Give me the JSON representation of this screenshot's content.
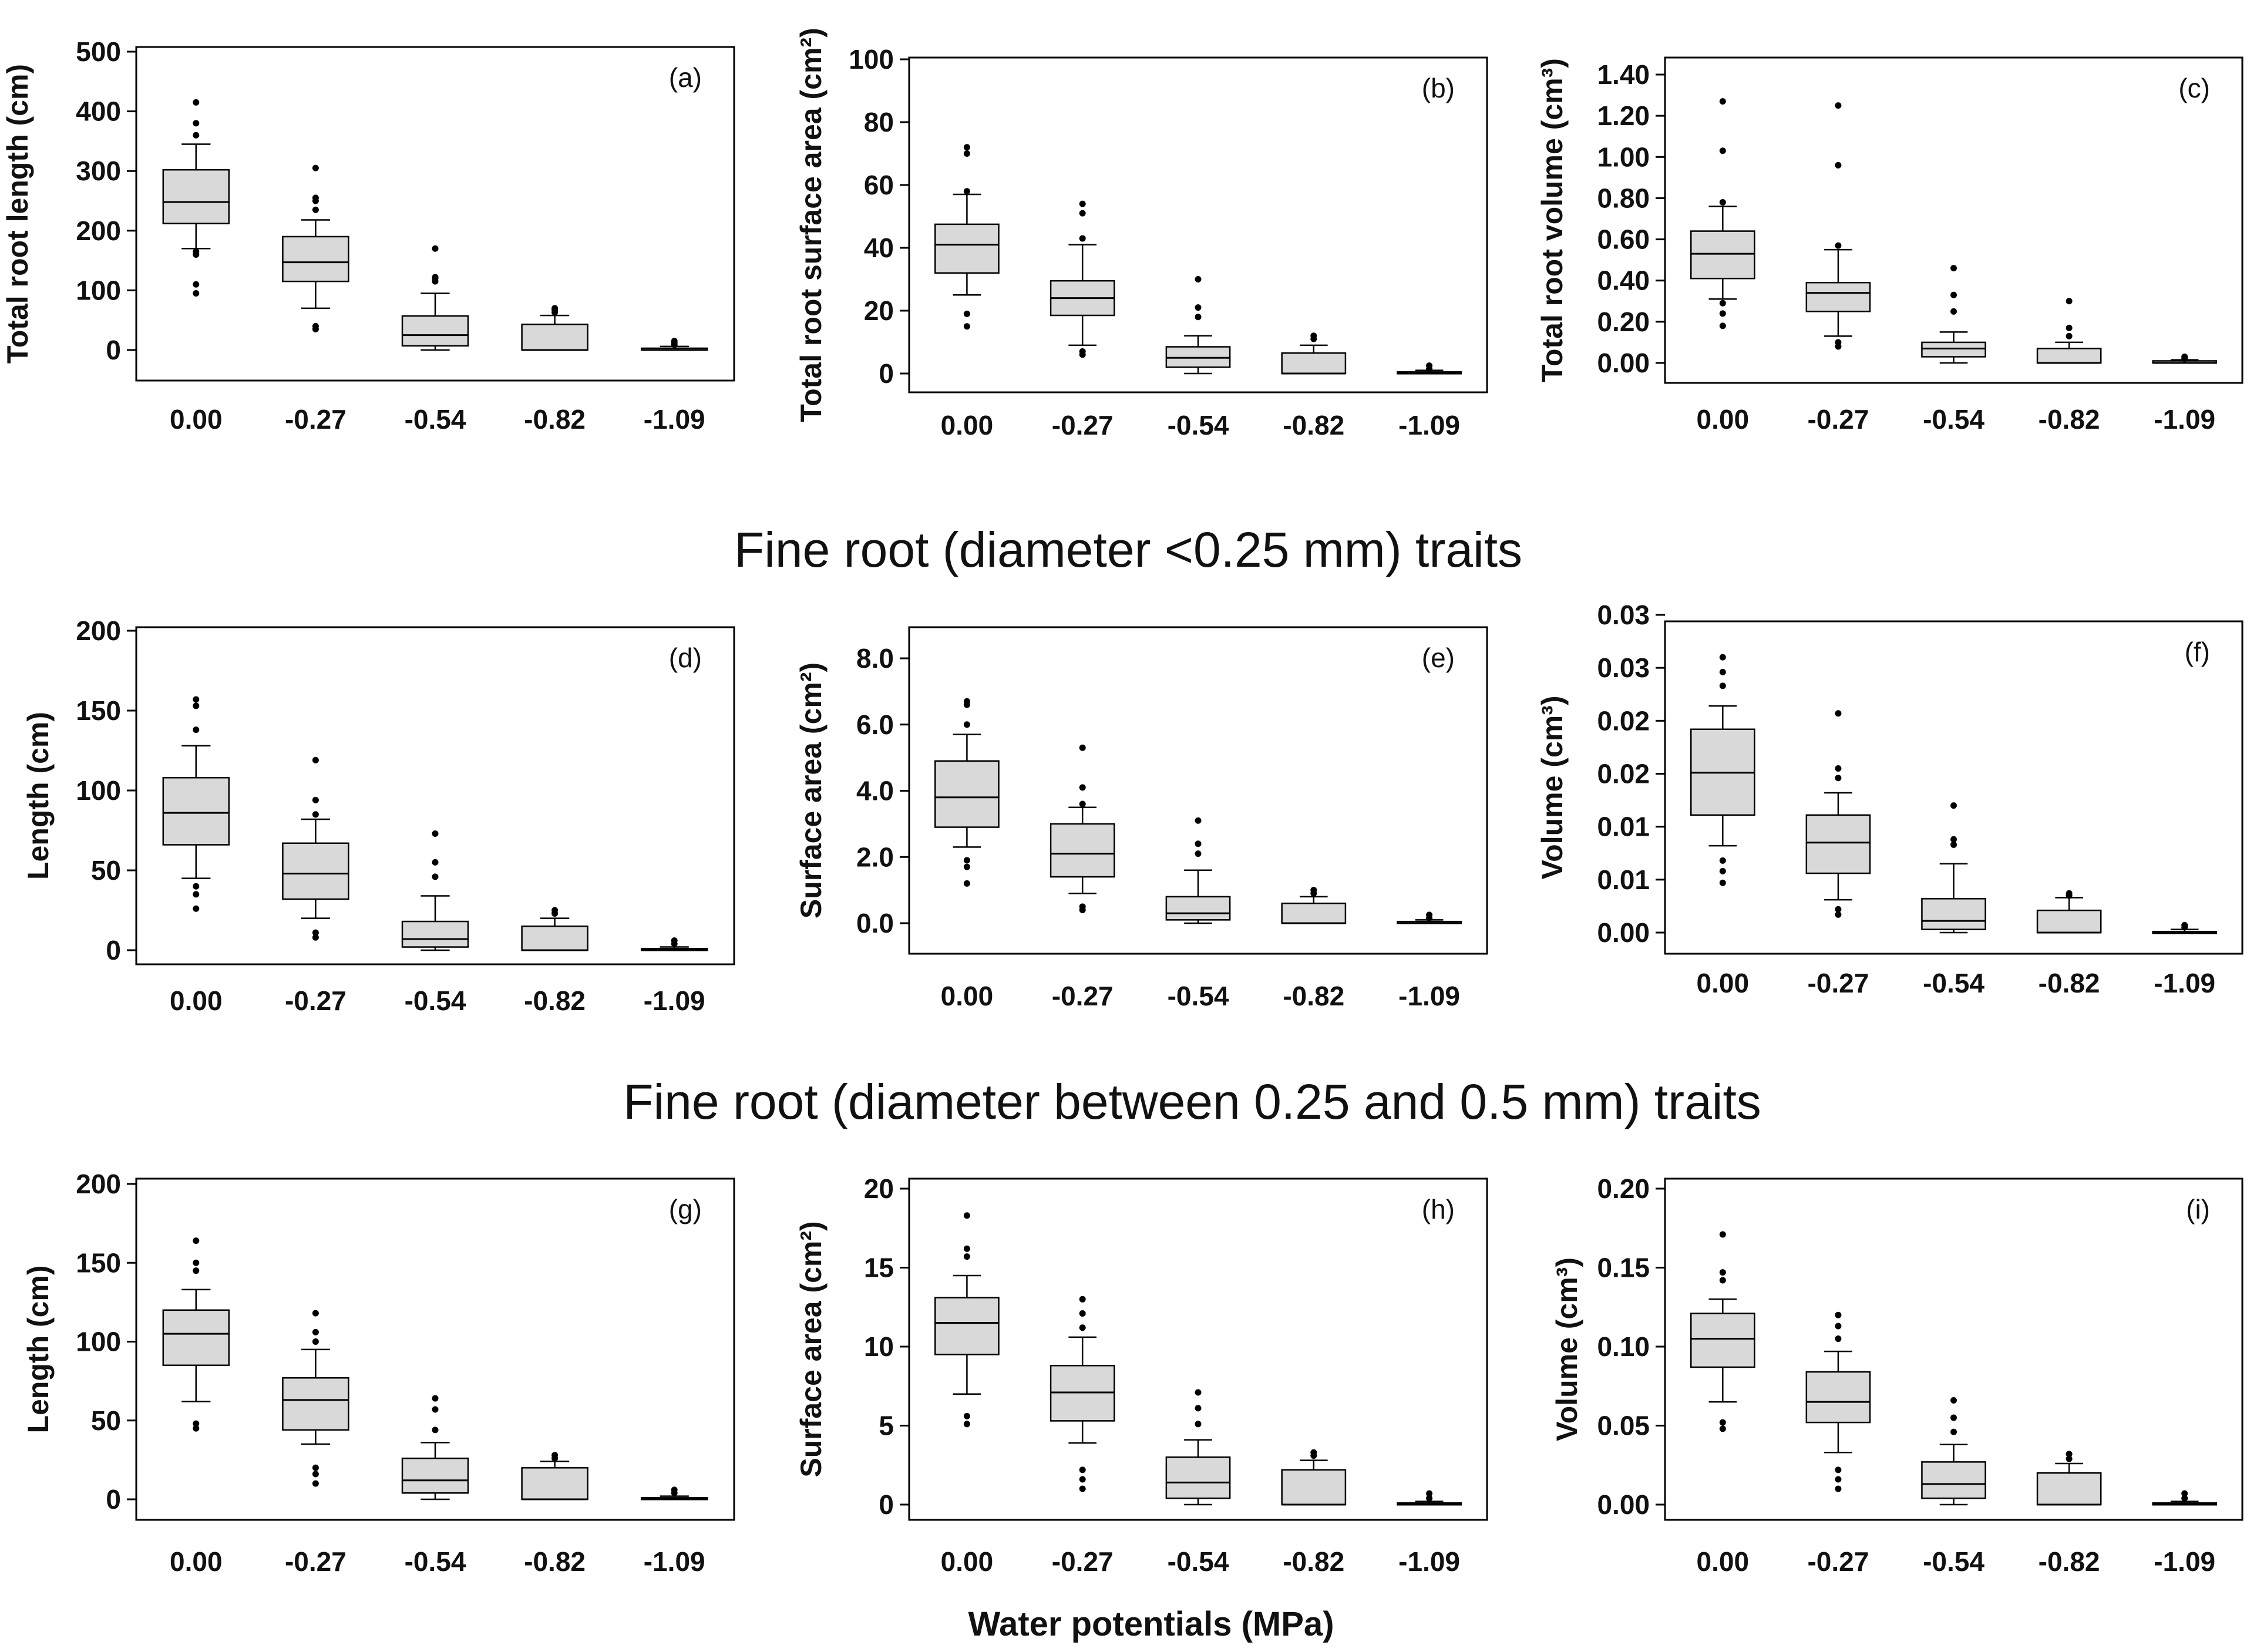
{
  "figure": {
    "section_titles": [
      "Fine root (diameter <0.25 mm) traits",
      "Fine root (diameter between 0.25 and 0.5 mm) traits"
    ],
    "x_axis_caption": "Water potentials (MPa)",
    "box_fill": "#d9d9d9",
    "line_color": "#000000"
  },
  "chart_data": [
    {
      "id": "a",
      "type": "box",
      "panel_label": "(a)",
      "ylabel": "Total root length (cm)",
      "categories": [
        "0.00",
        "-0.27",
        "-0.54",
        "-0.82",
        "-1.09"
      ],
      "yticks": [
        "0",
        "100",
        "200",
        "300",
        "400",
        "500"
      ],
      "ylim": [
        -50,
        500
      ],
      "boxes": [
        {
          "q1": 212,
          "median": 248,
          "q3": 302,
          "whisker_low": 170,
          "whisker_high": 345,
          "outliers": [
            95,
            110,
            160,
            165,
            360,
            380,
            415
          ]
        },
        {
          "q1": 115,
          "median": 147,
          "q3": 190,
          "whisker_low": 70,
          "whisker_high": 218,
          "outliers": [
            35,
            40,
            235,
            250,
            255,
            305
          ]
        },
        {
          "q1": 7,
          "median": 25,
          "q3": 57,
          "whisker_low": 0,
          "whisker_high": 95,
          "outliers": [
            115,
            120,
            122,
            170
          ]
        },
        {
          "q1": 0,
          "median": 0,
          "q3": 43,
          "whisker_low": 0,
          "whisker_high": 58,
          "outliers": [
            63,
            67,
            70
          ]
        },
        {
          "q1": 0,
          "median": 0,
          "q3": 3,
          "whisker_low": 0,
          "whisker_high": 6,
          "outliers": [
            9,
            12,
            15
          ]
        }
      ]
    },
    {
      "id": "b",
      "type": "box",
      "panel_label": "(b)",
      "ylabel": "Total root surface area (cm²)",
      "categories": [
        "0.00",
        "-0.27",
        "-0.54",
        "-0.82",
        "-1.09"
      ],
      "yticks": [
        "0",
        "20",
        "40",
        "60",
        "80",
        "100"
      ],
      "ylim": [
        -5,
        100
      ],
      "boxes": [
        {
          "q1": 32,
          "median": 41,
          "q3": 47.5,
          "whisker_low": 25,
          "whisker_high": 57,
          "outliers": [
            15,
            19,
            58,
            70,
            72
          ]
        },
        {
          "q1": 18.5,
          "median": 24,
          "q3": 29.5,
          "whisker_low": 9,
          "whisker_high": 41,
          "outliers": [
            6,
            7,
            43,
            51,
            54
          ]
        },
        {
          "q1": 2,
          "median": 5,
          "q3": 8.5,
          "whisker_low": 0,
          "whisker_high": 12,
          "outliers": [
            18,
            21,
            30
          ]
        },
        {
          "q1": 0,
          "median": 0,
          "q3": 6.5,
          "whisker_low": 0,
          "whisker_high": 9,
          "outliers": [
            11,
            12
          ]
        },
        {
          "q1": 0,
          "median": 0,
          "q3": 0.5,
          "whisker_low": 0,
          "whisker_high": 1,
          "outliers": [
            1.5,
            2.5
          ]
        }
      ]
    },
    {
      "id": "c",
      "type": "box",
      "panel_label": "(c)",
      "ylabel": "Total root volume (cm³)",
      "categories": [
        "0.00",
        "-0.27",
        "-0.54",
        "-0.82",
        "-1.09"
      ],
      "yticks": [
        "0.00",
        "0.20",
        "0.40",
        "0.60",
        "0.80",
        "1.00",
        "1.20",
        "1.40"
      ],
      "ylim": [
        -0.08,
        1.48
      ],
      "boxes": [
        {
          "q1": 0.41,
          "median": 0.53,
          "q3": 0.64,
          "whisker_low": 0.31,
          "whisker_high": 0.76,
          "outliers": [
            0.18,
            0.24,
            0.29,
            0.78,
            1.03,
            1.27
          ]
        },
        {
          "q1": 0.25,
          "median": 0.34,
          "q3": 0.39,
          "whisker_low": 0.13,
          "whisker_high": 0.55,
          "outliers": [
            0.08,
            0.1,
            0.57,
            0.96,
            1.25
          ]
        },
        {
          "q1": 0.03,
          "median": 0.07,
          "q3": 0.1,
          "whisker_low": 0,
          "whisker_high": 0.15,
          "outliers": [
            0.25,
            0.33,
            0.46
          ]
        },
        {
          "q1": 0,
          "median": 0,
          "q3": 0.07,
          "whisker_low": 0,
          "whisker_high": 0.1,
          "outliers": [
            0.13,
            0.17,
            0.3
          ]
        },
        {
          "q1": 0,
          "median": 0,
          "q3": 0.01,
          "whisker_low": 0,
          "whisker_high": 0.015,
          "outliers": [
            0.02,
            0.03
          ]
        }
      ]
    },
    {
      "id": "d",
      "type": "box",
      "panel_label": "(d)",
      "ylabel": "Length (cm)",
      "categories": [
        "0.00",
        "-0.27",
        "-0.54",
        "-0.82",
        "-1.09"
      ],
      "yticks": [
        "0",
        "50",
        "100",
        "150",
        "200"
      ],
      "ylim": [
        -8,
        200
      ],
      "boxes": [
        {
          "q1": 66,
          "median": 86,
          "q3": 108,
          "whisker_low": 45,
          "whisker_high": 128,
          "outliers": [
            26,
            35,
            40,
            138,
            153,
            157
          ]
        },
        {
          "q1": 32,
          "median": 48,
          "q3": 67,
          "whisker_low": 20,
          "whisker_high": 82,
          "outliers": [
            8,
            11,
            85,
            94,
            119
          ]
        },
        {
          "q1": 2,
          "median": 7,
          "q3": 18,
          "whisker_low": 0,
          "whisker_high": 34,
          "outliers": [
            46,
            55,
            73
          ]
        },
        {
          "q1": 0,
          "median": 0,
          "q3": 15,
          "whisker_low": 0,
          "whisker_high": 20,
          "outliers": [
            23,
            25
          ]
        },
        {
          "q1": 0,
          "median": 0,
          "q3": 1,
          "whisker_low": 0,
          "whisker_high": 2,
          "outliers": [
            4,
            6
          ]
        }
      ]
    },
    {
      "id": "e",
      "type": "box",
      "panel_label": "(e)",
      "ylabel": "Surface area (cm²)",
      "categories": [
        "0.00",
        "-0.27",
        "-0.54",
        "-0.82",
        "-1.09"
      ],
      "yticks": [
        "0.0",
        "2.0",
        "4.0",
        "6.0",
        "8.0"
      ],
      "ylim": [
        -0.5,
        8.8
      ],
      "boxes": [
        {
          "q1": 2.9,
          "median": 3.8,
          "q3": 4.9,
          "whisker_low": 2.3,
          "whisker_high": 5.7,
          "outliers": [
            1.2,
            1.7,
            1.9,
            6.0,
            6.6,
            6.7
          ]
        },
        {
          "q1": 1.4,
          "median": 2.1,
          "q3": 3.0,
          "whisker_low": 0.9,
          "whisker_high": 3.5,
          "outliers": [
            0.4,
            0.5,
            3.6,
            4.1,
            5.3
          ]
        },
        {
          "q1": 0.1,
          "median": 0.3,
          "q3": 0.8,
          "whisker_low": 0,
          "whisker_high": 1.6,
          "outliers": [
            2.1,
            2.4,
            3.1
          ]
        },
        {
          "q1": 0,
          "median": 0,
          "q3": 0.6,
          "whisker_low": 0,
          "whisker_high": 0.8,
          "outliers": [
            0.9,
            1.0
          ]
        },
        {
          "q1": 0,
          "median": 0,
          "q3": 0.05,
          "whisker_low": 0,
          "whisker_high": 0.1,
          "outliers": [
            0.15,
            0.25
          ]
        }
      ]
    },
    {
      "id": "f",
      "type": "box",
      "panel_label": "(f)",
      "ylabel": "Volume (cm³)",
      "categories": [
        "0.00",
        "-0.27",
        "-0.54",
        "-0.82",
        "-1.09"
      ],
      "yticks": [
        "0.00",
        "0.01",
        "0.01",
        "0.02",
        "0.02",
        "0.03",
        "0.03"
      ],
      "ylim": [
        -0.0012,
        0.03
      ],
      "boxes": [
        {
          "q1": 0.0111,
          "median": 0.0151,
          "q3": 0.0192,
          "whisker_low": 0.0082,
          "whisker_high": 0.0214,
          "outliers": [
            0.0047,
            0.0058,
            0.0068,
            0.0233,
            0.0246,
            0.026
          ]
        },
        {
          "q1": 0.0056,
          "median": 0.0085,
          "q3": 0.0111,
          "whisker_low": 0.0031,
          "whisker_high": 0.0132,
          "outliers": [
            0.0017,
            0.0022,
            0.0146,
            0.0155,
            0.0207
          ]
        },
        {
          "q1": 0.0003,
          "median": 0.0011,
          "q3": 0.0032,
          "whisker_low": 0,
          "whisker_high": 0.0065,
          "outliers": [
            0.0083,
            0.0088,
            0.012
          ]
        },
        {
          "q1": 0,
          "median": 0,
          "q3": 0.0021,
          "whisker_low": 0,
          "whisker_high": 0.0033,
          "outliers": [
            0.0035,
            0.0037
          ]
        },
        {
          "q1": 0,
          "median": 0,
          "q3": 0.0001,
          "whisker_low": 0,
          "whisker_high": 0.0003,
          "outliers": [
            0.0005,
            0.0007
          ]
        }
      ]
    },
    {
      "id": "g",
      "type": "box",
      "panel_label": "(g)",
      "ylabel": "Length (cm)",
      "categories": [
        "0.00",
        "-0.27",
        "-0.54",
        "-0.82",
        "-1.09"
      ],
      "yticks": [
        "0",
        "50",
        "100",
        "150",
        "200"
      ],
      "ylim": [
        -8,
        200
      ],
      "boxes": [
        {
          "q1": 85,
          "median": 105,
          "q3": 120,
          "whisker_low": 62,
          "whisker_high": 133,
          "outliers": [
            45,
            48,
            145,
            150,
            164
          ]
        },
        {
          "q1": 44,
          "median": 63,
          "q3": 77,
          "whisker_low": 35,
          "whisker_high": 95,
          "outliers": [
            10,
            16,
            20,
            100,
            106,
            118
          ]
        },
        {
          "q1": 4,
          "median": 12,
          "q3": 26,
          "whisker_low": 0,
          "whisker_high": 36,
          "outliers": [
            44,
            57,
            64
          ]
        },
        {
          "q1": 0,
          "median": 0,
          "q3": 20,
          "whisker_low": 0,
          "whisker_high": 24,
          "outliers": [
            26,
            28
          ]
        },
        {
          "q1": 0,
          "median": 0,
          "q3": 1,
          "whisker_low": 0,
          "whisker_high": 2,
          "outliers": [
            4,
            6
          ]
        }
      ]
    },
    {
      "id": "h",
      "type": "box",
      "panel_label": "(h)",
      "ylabel": "Surface area (cm²)",
      "categories": [
        "0.00",
        "-0.27",
        "-0.54",
        "-0.82",
        "-1.09"
      ],
      "yticks": [
        "0",
        "5",
        "10",
        "15",
        "20"
      ],
      "ylim": [
        -0.8,
        20
      ],
      "boxes": [
        {
          "q1": 9.5,
          "median": 11.5,
          "q3": 13.1,
          "whisker_low": 7,
          "whisker_high": 14.5,
          "outliers": [
            5.1,
            5.6,
            15.7,
            16.2,
            18.3
          ]
        },
        {
          "q1": 5.3,
          "median": 7.1,
          "q3": 8.8,
          "whisker_low": 3.9,
          "whisker_high": 10.6,
          "outliers": [
            1,
            1.6,
            2.2,
            11.2,
            12.1,
            13
          ]
        },
        {
          "q1": 0.4,
          "median": 1.4,
          "q3": 3.0,
          "whisker_low": 0,
          "whisker_high": 4.1,
          "outliers": [
            5.1,
            6.1,
            7.1
          ]
        },
        {
          "q1": 0,
          "median": 0,
          "q3": 2.2,
          "whisker_low": 0,
          "whisker_high": 2.8,
          "outliers": [
            3.1,
            3.3
          ]
        },
        {
          "q1": 0,
          "median": 0,
          "q3": 0.1,
          "whisker_low": 0,
          "whisker_high": 0.2,
          "outliers": [
            0.4,
            0.7
          ]
        }
      ]
    },
    {
      "id": "i",
      "type": "box",
      "panel_label": "(i)",
      "ylabel": "Volume (cm³)",
      "categories": [
        "0.00",
        "-0.27",
        "-0.54",
        "-0.82",
        "-1.09"
      ],
      "yticks": [
        "0.00",
        "0.05",
        "0.10",
        "0.15",
        "0.20"
      ],
      "ylim": [
        -0.008,
        0.2
      ],
      "boxes": [
        {
          "q1": 0.087,
          "median": 0.105,
          "q3": 0.121,
          "whisker_low": 0.065,
          "whisker_high": 0.13,
          "outliers": [
            0.048,
            0.052,
            0.142,
            0.147,
            0.171
          ]
        },
        {
          "q1": 0.052,
          "median": 0.065,
          "q3": 0.084,
          "whisker_low": 0.033,
          "whisker_high": 0.097,
          "outliers": [
            0.01,
            0.016,
            0.022,
            0.105,
            0.113,
            0.12
          ]
        },
        {
          "q1": 0.004,
          "median": 0.013,
          "q3": 0.027,
          "whisker_low": 0,
          "whisker_high": 0.038,
          "outliers": [
            0.046,
            0.055,
            0.066
          ]
        },
        {
          "q1": 0,
          "median": 0,
          "q3": 0.02,
          "whisker_low": 0,
          "whisker_high": 0.026,
          "outliers": [
            0.029,
            0.032
          ]
        },
        {
          "q1": 0,
          "median": 0,
          "q3": 0.001,
          "whisker_low": 0,
          "whisker_high": 0.002,
          "outliers": [
            0.004,
            0.007
          ]
        }
      ]
    }
  ]
}
